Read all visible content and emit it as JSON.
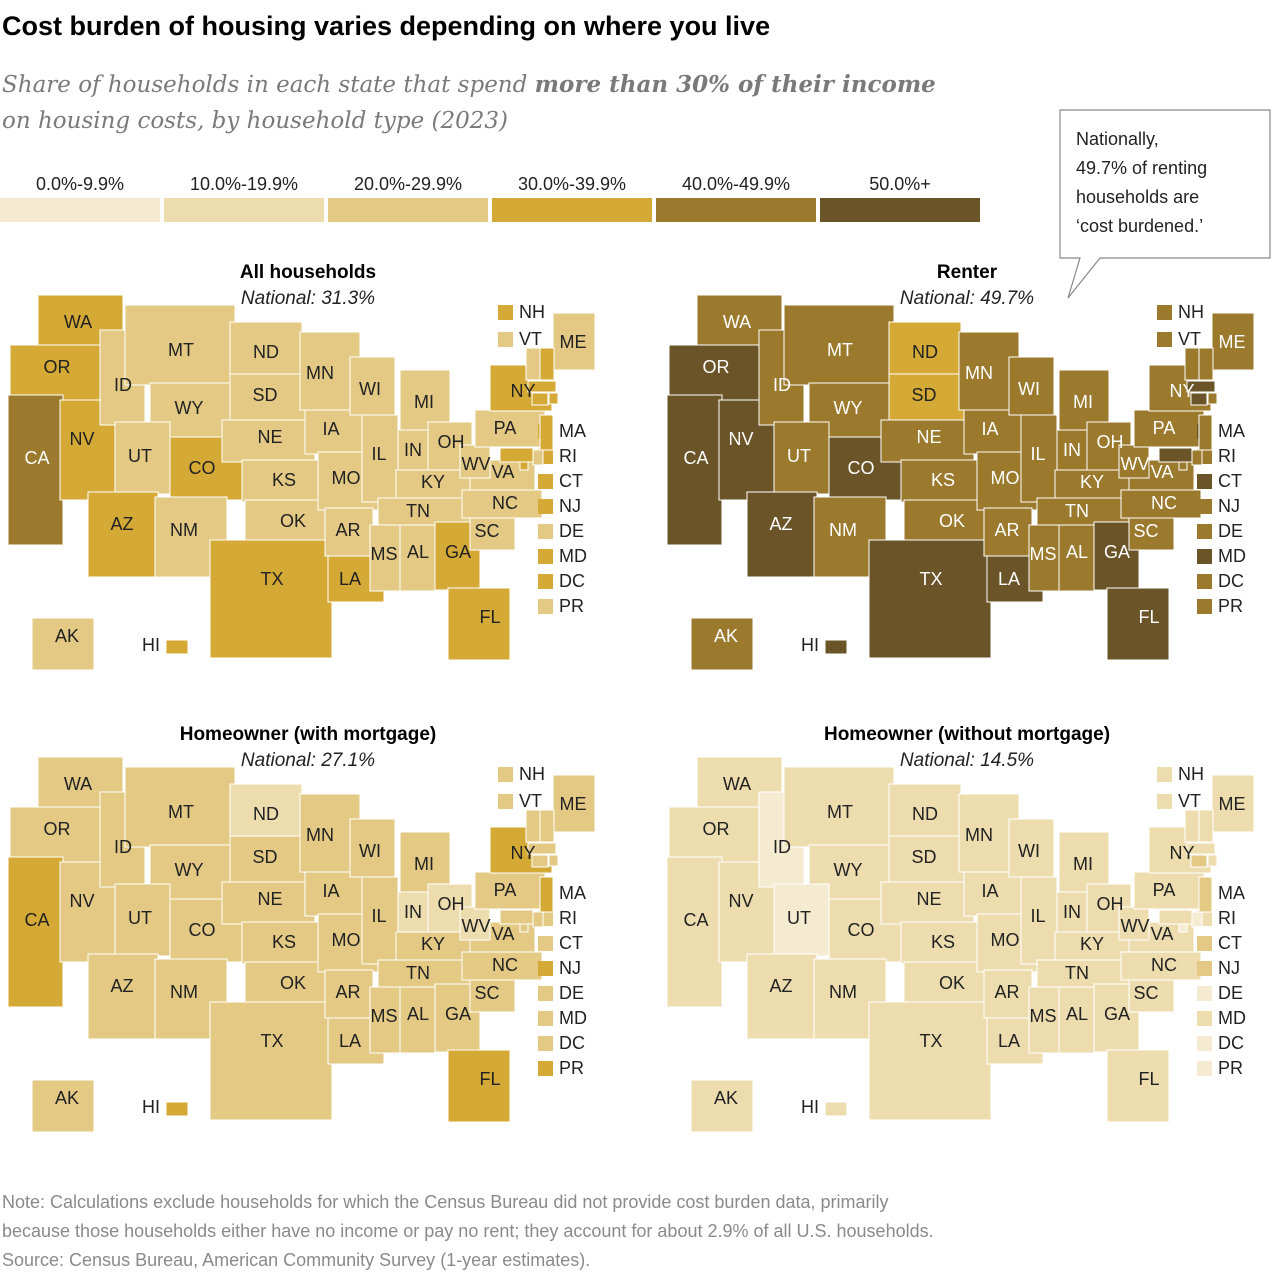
{
  "title": "Cost burden of housing varies depending on where you live",
  "subtitle": [
    "Share of households in each state that spend ",
    "more than 30% of their income",
    "on housing costs, by household type (2023)"
  ],
  "legend": {
    "bins": [
      {
        "label": "0.0%-9.9%",
        "color": "#f5ebd0"
      },
      {
        "label": "10.0%-19.9%",
        "color": "#ecdcae"
      },
      {
        "label": "20.0%-29.9%",
        "color": "#e3c983"
      },
      {
        "label": "30.0%-39.9%",
        "color": "#d4a935"
      },
      {
        "label": "40.0%-49.9%",
        "color": "#9c7a2d"
      },
      {
        "label": "50.0%+",
        "color": "#6b5428"
      }
    ]
  },
  "callout": [
    "Nationally,",
    "49.7% of renting",
    "households are",
    "‘cost burdened.’"
  ],
  "maps": [
    {
      "title": "All households",
      "national": "National: 31.3%",
      "states": [
        {
          "label": "WA",
          "bin": 3
        },
        {
          "label": "OR",
          "bin": 3
        },
        {
          "label": "CA",
          "bin": 4
        },
        {
          "label": "NV",
          "bin": 3
        },
        {
          "label": "ID",
          "bin": 2
        },
        {
          "label": "MT",
          "bin": 2
        },
        {
          "label": "WY",
          "bin": 2
        },
        {
          "label": "UT",
          "bin": 2
        },
        {
          "label": "CO",
          "bin": 3
        },
        {
          "label": "AZ",
          "bin": 3
        },
        {
          "label": "NM",
          "bin": 2
        },
        {
          "label": "ND",
          "bin": 2
        },
        {
          "label": "SD",
          "bin": 2
        },
        {
          "label": "NE",
          "bin": 2
        },
        {
          "label": "KS",
          "bin": 2
        },
        {
          "label": "OK",
          "bin": 2
        },
        {
          "label": "TX",
          "bin": 3
        },
        {
          "label": "MN",
          "bin": 2
        },
        {
          "label": "IA",
          "bin": 2
        },
        {
          "label": "MO",
          "bin": 2
        },
        {
          "label": "AR",
          "bin": 2
        },
        {
          "label": "LA",
          "bin": 3
        },
        {
          "label": "WI",
          "bin": 2
        },
        {
          "label": "IL",
          "bin": 2
        },
        {
          "label": "MI",
          "bin": 2
        },
        {
          "label": "IN",
          "bin": 2
        },
        {
          "label": "OH",
          "bin": 2
        },
        {
          "label": "KY",
          "bin": 2
        },
        {
          "label": "TN",
          "bin": 2
        },
        {
          "label": "MS",
          "bin": 2
        },
        {
          "label": "AL",
          "bin": 2
        },
        {
          "label": "GA",
          "bin": 3
        },
        {
          "label": "FL",
          "bin": 3
        },
        {
          "label": "SC",
          "bin": 2
        },
        {
          "label": "NC",
          "bin": 2
        },
        {
          "label": "VA",
          "bin": 2
        },
        {
          "label": "WV",
          "bin": 2
        },
        {
          "label": "PA",
          "bin": 2
        },
        {
          "label": "NY",
          "bin": 3
        },
        {
          "label": "ME",
          "bin": 2
        },
        {
          "label": "AK",
          "bin": 2
        },
        {
          "label": "HI",
          "bin": 3
        },
        {
          "label": "NH",
          "bin": 3
        },
        {
          "label": "VT",
          "bin": 2
        },
        {
          "label": "MA",
          "bin": 3
        },
        {
          "label": "RI",
          "bin": 3
        },
        {
          "label": "CT",
          "bin": 3
        },
        {
          "label": "NJ",
          "bin": 3
        },
        {
          "label": "DE",
          "bin": 2
        },
        {
          "label": "MD",
          "bin": 3
        },
        {
          "label": "DC",
          "bin": 3
        },
        {
          "label": "PR",
          "bin": 2
        }
      ]
    },
    {
      "title": "Renter",
      "national": "National: 49.7%",
      "states": [
        {
          "label": "WA",
          "bin": 4
        },
        {
          "label": "OR",
          "bin": 5
        },
        {
          "label": "CA",
          "bin": 5
        },
        {
          "label": "NV",
          "bin": 5
        },
        {
          "label": "ID",
          "bin": 4
        },
        {
          "label": "MT",
          "bin": 4
        },
        {
          "label": "WY",
          "bin": 4
        },
        {
          "label": "UT",
          "bin": 4
        },
        {
          "label": "CO",
          "bin": 5
        },
        {
          "label": "AZ",
          "bin": 5
        },
        {
          "label": "NM",
          "bin": 4
        },
        {
          "label": "ND",
          "bin": 3
        },
        {
          "label": "SD",
          "bin": 3
        },
        {
          "label": "NE",
          "bin": 4
        },
        {
          "label": "KS",
          "bin": 4
        },
        {
          "label": "OK",
          "bin": 4
        },
        {
          "label": "TX",
          "bin": 5
        },
        {
          "label": "MN",
          "bin": 4
        },
        {
          "label": "IA",
          "bin": 4
        },
        {
          "label": "MO",
          "bin": 4
        },
        {
          "label": "AR",
          "bin": 4
        },
        {
          "label": "LA",
          "bin": 5
        },
        {
          "label": "WI",
          "bin": 4
        },
        {
          "label": "IL",
          "bin": 4
        },
        {
          "label": "MI",
          "bin": 4
        },
        {
          "label": "IN",
          "bin": 4
        },
        {
          "label": "OH",
          "bin": 4
        },
        {
          "label": "KY",
          "bin": 4
        },
        {
          "label": "TN",
          "bin": 4
        },
        {
          "label": "MS",
          "bin": 4
        },
        {
          "label": "AL",
          "bin": 4
        },
        {
          "label": "GA",
          "bin": 5
        },
        {
          "label": "FL",
          "bin": 5
        },
        {
          "label": "SC",
          "bin": 4
        },
        {
          "label": "NC",
          "bin": 4
        },
        {
          "label": "VA",
          "bin": 4
        },
        {
          "label": "WV",
          "bin": 4
        },
        {
          "label": "PA",
          "bin": 4
        },
        {
          "label": "NY",
          "bin": 4
        },
        {
          "label": "ME",
          "bin": 4
        },
        {
          "label": "AK",
          "bin": 4
        },
        {
          "label": "HI",
          "bin": 5
        },
        {
          "label": "NH",
          "bin": 4
        },
        {
          "label": "VT",
          "bin": 4
        },
        {
          "label": "MA",
          "bin": 5
        },
        {
          "label": "RI",
          "bin": 4
        },
        {
          "label": "CT",
          "bin": 5
        },
        {
          "label": "NJ",
          "bin": 4
        },
        {
          "label": "DE",
          "bin": 4
        },
        {
          "label": "MD",
          "bin": 5
        },
        {
          "label": "DC",
          "bin": 4
        },
        {
          "label": "PR",
          "bin": 4
        }
      ]
    },
    {
      "title": "Homeowner (with mortgage)",
      "national": "National: 27.1%",
      "states": [
        {
          "label": "WA",
          "bin": 2
        },
        {
          "label": "OR",
          "bin": 2
        },
        {
          "label": "CA",
          "bin": 3
        },
        {
          "label": "NV",
          "bin": 2
        },
        {
          "label": "ID",
          "bin": 2
        },
        {
          "label": "MT",
          "bin": 2
        },
        {
          "label": "WY",
          "bin": 2
        },
        {
          "label": "UT",
          "bin": 2
        },
        {
          "label": "CO",
          "bin": 2
        },
        {
          "label": "AZ",
          "bin": 2
        },
        {
          "label": "NM",
          "bin": 2
        },
        {
          "label": "ND",
          "bin": 1
        },
        {
          "label": "SD",
          "bin": 2
        },
        {
          "label": "NE",
          "bin": 2
        },
        {
          "label": "KS",
          "bin": 2
        },
        {
          "label": "OK",
          "bin": 2
        },
        {
          "label": "TX",
          "bin": 2
        },
        {
          "label": "MN",
          "bin": 2
        },
        {
          "label": "IA",
          "bin": 2
        },
        {
          "label": "MO",
          "bin": 2
        },
        {
          "label": "AR",
          "bin": 2
        },
        {
          "label": "LA",
          "bin": 2
        },
        {
          "label": "WI",
          "bin": 2
        },
        {
          "label": "IL",
          "bin": 2
        },
        {
          "label": "MI",
          "bin": 2
        },
        {
          "label": "IN",
          "bin": 1
        },
        {
          "label": "OH",
          "bin": 1
        },
        {
          "label": "KY",
          "bin": 2
        },
        {
          "label": "TN",
          "bin": 2
        },
        {
          "label": "MS",
          "bin": 2
        },
        {
          "label": "AL",
          "bin": 2
        },
        {
          "label": "GA",
          "bin": 2
        },
        {
          "label": "FL",
          "bin": 3
        },
        {
          "label": "SC",
          "bin": 2
        },
        {
          "label": "NC",
          "bin": 2
        },
        {
          "label": "VA",
          "bin": 2
        },
        {
          "label": "WV",
          "bin": 1
        },
        {
          "label": "PA",
          "bin": 2
        },
        {
          "label": "NY",
          "bin": 3
        },
        {
          "label": "ME",
          "bin": 2
        },
        {
          "label": "AK",
          "bin": 2
        },
        {
          "label": "HI",
          "bin": 3
        },
        {
          "label": "NH",
          "bin": 2
        },
        {
          "label": "VT",
          "bin": 2
        },
        {
          "label": "MA",
          "bin": 2
        },
        {
          "label": "RI",
          "bin": 2
        },
        {
          "label": "CT",
          "bin": 2
        },
        {
          "label": "NJ",
          "bin": 3
        },
        {
          "label": "DE",
          "bin": 2
        },
        {
          "label": "MD",
          "bin": 2
        },
        {
          "label": "DC",
          "bin": 2
        },
        {
          "label": "PR",
          "bin": 3
        }
      ]
    },
    {
      "title": "Homeowner (without mortgage)",
      "national": "National: 14.5%",
      "states": [
        {
          "label": "WA",
          "bin": 1
        },
        {
          "label": "OR",
          "bin": 1
        },
        {
          "label": "CA",
          "bin": 1
        },
        {
          "label": "NV",
          "bin": 1
        },
        {
          "label": "ID",
          "bin": 0
        },
        {
          "label": "MT",
          "bin": 1
        },
        {
          "label": "WY",
          "bin": 1
        },
        {
          "label": "UT",
          "bin": 0
        },
        {
          "label": "CO",
          "bin": 1
        },
        {
          "label": "AZ",
          "bin": 1
        },
        {
          "label": "NM",
          "bin": 1
        },
        {
          "label": "ND",
          "bin": 1
        },
        {
          "label": "SD",
          "bin": 1
        },
        {
          "label": "NE",
          "bin": 1
        },
        {
          "label": "KS",
          "bin": 1
        },
        {
          "label": "OK",
          "bin": 1
        },
        {
          "label": "TX",
          "bin": 1
        },
        {
          "label": "MN",
          "bin": 1
        },
        {
          "label": "IA",
          "bin": 1
        },
        {
          "label": "MO",
          "bin": 1
        },
        {
          "label": "AR",
          "bin": 1
        },
        {
          "label": "LA",
          "bin": 1
        },
        {
          "label": "WI",
          "bin": 1
        },
        {
          "label": "IL",
          "bin": 1
        },
        {
          "label": "MI",
          "bin": 1
        },
        {
          "label": "IN",
          "bin": 1
        },
        {
          "label": "OH",
          "bin": 1
        },
        {
          "label": "KY",
          "bin": 1
        },
        {
          "label": "TN",
          "bin": 1
        },
        {
          "label": "MS",
          "bin": 1
        },
        {
          "label": "AL",
          "bin": 1
        },
        {
          "label": "GA",
          "bin": 1
        },
        {
          "label": "FL",
          "bin": 1
        },
        {
          "label": "SC",
          "bin": 1
        },
        {
          "label": "NC",
          "bin": 1
        },
        {
          "label": "VA",
          "bin": 1
        },
        {
          "label": "WV",
          "bin": 1
        },
        {
          "label": "PA",
          "bin": 1
        },
        {
          "label": "NY",
          "bin": 1
        },
        {
          "label": "ME",
          "bin": 1
        },
        {
          "label": "AK",
          "bin": 1
        },
        {
          "label": "HI",
          "bin": 1
        },
        {
          "label": "NH",
          "bin": 1
        },
        {
          "label": "VT",
          "bin": 1
        },
        {
          "label": "MA",
          "bin": 1
        },
        {
          "label": "RI",
          "bin": 1
        },
        {
          "label": "CT",
          "bin": 2
        },
        {
          "label": "NJ",
          "bin": 2
        },
        {
          "label": "DE",
          "bin": 0
        },
        {
          "label": "MD",
          "bin": 1
        },
        {
          "label": "DC",
          "bin": 0
        },
        {
          "label": "PR",
          "bin": 0
        }
      ]
    }
  ],
  "notes": [
    "Note: Calculations exclude households for which the Census Bureau did not provide cost burden data, primarily",
    "because those households either have no income or pay no rent; they account for about 2.9% of all U.S. households.",
    "Source: Census Bureau, American Community Survey (1-year estimates)."
  ]
}
